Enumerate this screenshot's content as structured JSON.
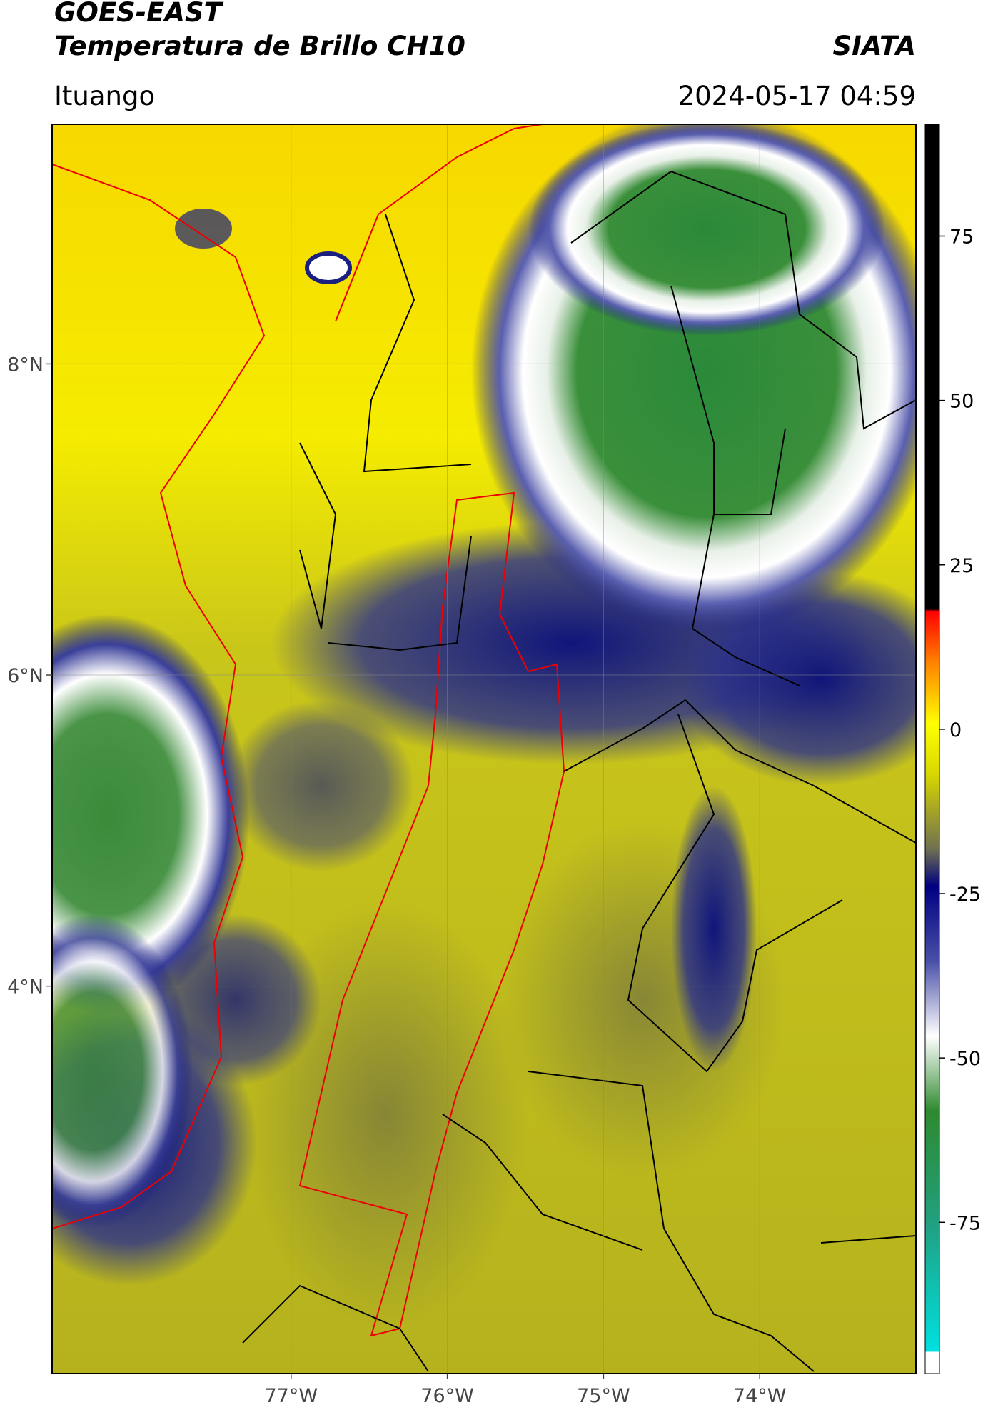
{
  "header": {
    "title": "GOES-EAST",
    "subtitle": "Temperatura de Brillo CH10",
    "agency": "SIATA",
    "location": "Ituango",
    "datetime": "2024-05-17 04:59"
  },
  "map": {
    "xlim": [
      -78.53,
      -73.0
    ],
    "ylim": [
      1.51,
      9.54
    ],
    "xticks": [
      {
        "value": -77,
        "label": "77°W"
      },
      {
        "value": -76,
        "label": "76°W"
      },
      {
        "value": -75,
        "label": "75°W"
      },
      {
        "value": -74,
        "label": "74°W"
      }
    ],
    "yticks": [
      {
        "value": 8,
        "label": "8°N"
      },
      {
        "value": 6,
        "label": "6°N"
      },
      {
        "value": 4,
        "label": "4°N"
      }
    ],
    "grid": true
  },
  "colorbar": {
    "lim": [
      -98,
      92
    ],
    "ticks": [
      75,
      50,
      25,
      0,
      -25,
      -50,
      -75
    ]
  }
}
